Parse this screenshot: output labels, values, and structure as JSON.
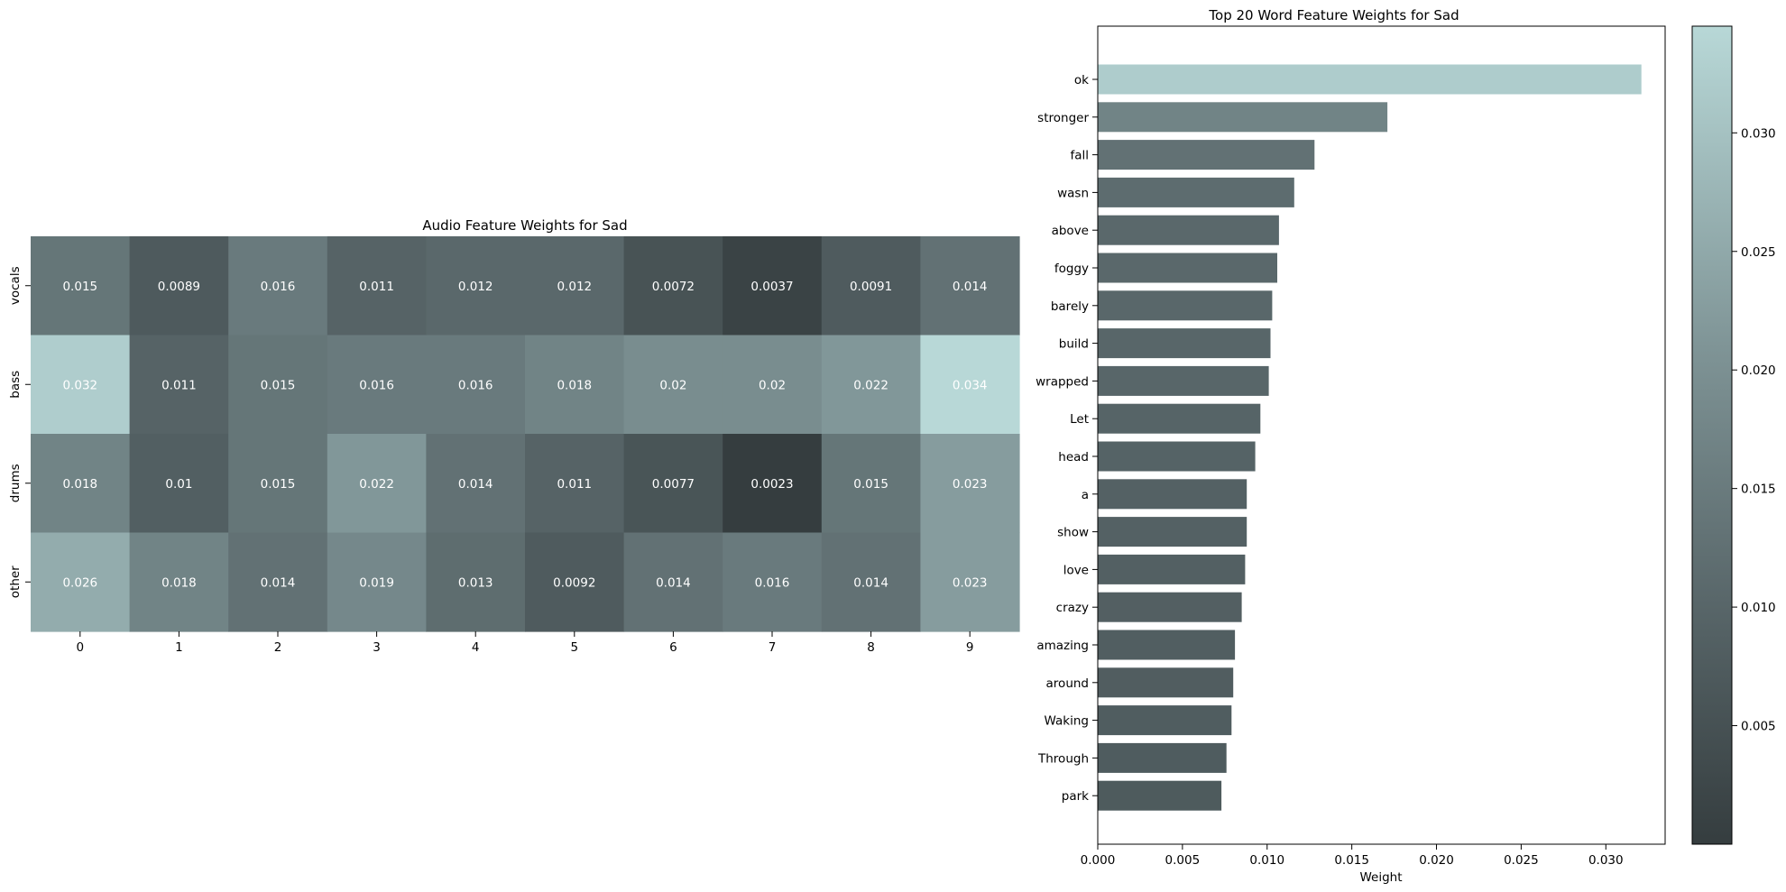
{
  "chart_data": [
    {
      "type": "heatmap",
      "title": "Audio Feature Weights for Sad",
      "rows": [
        "vocals",
        "bass",
        "drums",
        "other"
      ],
      "columns": [
        "0",
        "1",
        "2",
        "3",
        "4",
        "5",
        "6",
        "7",
        "8",
        "9"
      ],
      "values": [
        [
          0.015,
          0.0089,
          0.016,
          0.011,
          0.012,
          0.012,
          0.0072,
          0.0037,
          0.0091,
          0.014
        ],
        [
          0.032,
          0.011,
          0.015,
          0.016,
          0.016,
          0.018,
          0.02,
          0.02,
          0.022,
          0.034
        ],
        [
          0.018,
          0.01,
          0.015,
          0.022,
          0.014,
          0.011,
          0.0077,
          0.0023,
          0.015,
          0.023
        ],
        [
          0.026,
          0.018,
          0.014,
          0.019,
          0.013,
          0.0092,
          0.014,
          0.016,
          0.014,
          0.023
        ]
      ],
      "value_labels": [
        [
          "0.015",
          "0.0089",
          "0.016",
          "0.011",
          "0.012",
          "0.012",
          "0.0072",
          "0.0037",
          "0.0091",
          "0.014"
        ],
        [
          "0.032",
          "0.011",
          "0.015",
          "0.016",
          "0.016",
          "0.018",
          "0.02",
          "0.02",
          "0.022",
          "0.034"
        ],
        [
          "0.018",
          "0.01",
          "0.015",
          "0.022",
          "0.014",
          "0.011",
          "0.0077",
          "0.0023",
          "0.015",
          "0.023"
        ],
        [
          "0.026",
          "0.018",
          "0.014",
          "0.019",
          "0.013",
          "0.0092",
          "0.014",
          "0.016",
          "0.014",
          "0.023"
        ]
      ],
      "color_range": [
        0.0023,
        0.034
      ],
      "colors": {
        "low": "#353d3f",
        "high": "#b8d8d7"
      }
    },
    {
      "type": "bar",
      "orientation": "horizontal",
      "title": "Top 20 Word Feature Weights for Sad",
      "xlabel": "Weight",
      "categories": [
        "ok",
        "stronger",
        "fall",
        "wasn",
        "above",
        "foggy",
        "barely",
        "build",
        "wrapped",
        "Let",
        "head",
        "a",
        "show",
        "love",
        "crazy",
        "amazing",
        "around",
        "Waking",
        "Through",
        "park"
      ],
      "values": [
        0.0321,
        0.0171,
        0.0128,
        0.0116,
        0.0107,
        0.0106,
        0.0103,
        0.0102,
        0.0101,
        0.0096,
        0.0093,
        0.0088,
        0.0088,
        0.0087,
        0.0085,
        0.0081,
        0.008,
        0.0079,
        0.0076,
        0.0073
      ],
      "xlim": [
        0,
        0.0335
      ],
      "xticks": [
        "0.000",
        "0.005",
        "0.010",
        "0.015",
        "0.020",
        "0.025",
        "0.030"
      ],
      "colorbar": {
        "range": [
          0,
          0.0345
        ],
        "ticks": [
          "0.005",
          "0.010",
          "0.015",
          "0.020",
          "0.025",
          "0.030"
        ]
      },
      "grid": false
    }
  ]
}
